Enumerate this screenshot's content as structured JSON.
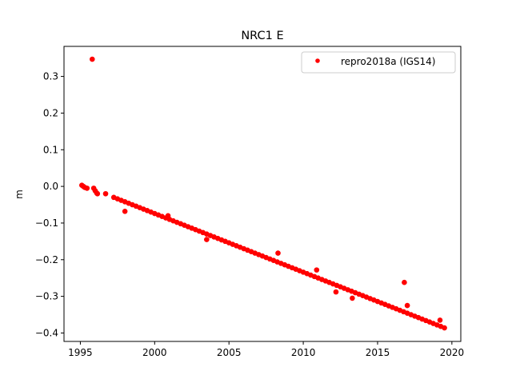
{
  "chart_data": {
    "type": "scatter",
    "title": "NRC1 E",
    "xlabel": "",
    "ylabel": "m",
    "xlim": [
      1993.9,
      2020.6
    ],
    "ylim": [
      -0.423,
      0.382
    ],
    "xticks": [
      1995,
      2000,
      2005,
      2010,
      2015,
      2020
    ],
    "xtick_labels": [
      "1995",
      "2000",
      "2005",
      "2010",
      "2015",
      "2020"
    ],
    "yticks": [
      0.3,
      0.2,
      0.1,
      0.0,
      -0.1,
      -0.2,
      -0.3,
      -0.4
    ],
    "ytick_labels": [
      "0.3",
      "0.2",
      "0.1",
      "0.0",
      "−0.1",
      "−0.2",
      "−0.3",
      "−0.4"
    ],
    "grid": false,
    "legend": {
      "placement": "top-right",
      "entries": [
        "repro2018a (IGS14)"
      ]
    },
    "series": [
      {
        "name": "repro2018a (IGS14)",
        "color": "#ff0000",
        "marker": "dot",
        "x": [
          1995.1,
          1995.2,
          1995.3,
          1995.45,
          1995.8,
          1995.9,
          1996.0,
          1996.1,
          1996.15,
          1996.7,
          1997.25,
          1997.5,
          1997.75,
          1998.0,
          1998.25,
          1998.5,
          1998.75,
          1999.0,
          1999.25,
          1999.5,
          1999.75,
          2000.0,
          2000.25,
          2000.5,
          2000.75,
          2001.0,
          2001.25,
          2001.5,
          2001.75,
          2002.0,
          2002.25,
          2002.5,
          2002.75,
          2003.0,
          2003.25,
          2003.5,
          2003.75,
          2004.0,
          2004.25,
          2004.5,
          2004.75,
          2005.0,
          2005.25,
          2005.5,
          2005.75,
          2006.0,
          2006.25,
          2006.5,
          2006.75,
          2007.0,
          2007.25,
          2007.5,
          2007.75,
          2008.0,
          2008.25,
          2008.5,
          2008.75,
          2009.0,
          2009.25,
          2009.5,
          2009.75,
          2010.0,
          2010.25,
          2010.5,
          2010.75,
          2011.0,
          2011.25,
          2011.5,
          2011.75,
          2012.0,
          2012.25,
          2012.5,
          2012.75,
          2013.0,
          2013.25,
          2013.5,
          2013.75,
          2014.0,
          2014.25,
          2014.5,
          2014.75,
          2015.0,
          2015.25,
          2015.5,
          2015.75,
          2016.0,
          2016.25,
          2016.5,
          2016.75,
          2017.0,
          2017.25,
          2017.5,
          2017.75,
          2018.0,
          2018.25,
          2018.5,
          2018.75,
          2019.0,
          2019.25,
          2019.5,
          2008.3,
          2016.8,
          1998.0,
          2000.9,
          2003.5,
          2010.9,
          2012.2,
          2013.3,
          2017.0,
          2019.2
        ],
        "y": [
          0.003,
          0.0,
          -0.003,
          -0.005,
          0.347,
          -0.005,
          -0.012,
          -0.018,
          -0.02,
          -0.02,
          -0.03,
          -0.034,
          -0.038,
          -0.042,
          -0.046,
          -0.05,
          -0.054,
          -0.058,
          -0.062,
          -0.066,
          -0.07,
          -0.074,
          -0.078,
          -0.082,
          -0.086,
          -0.09,
          -0.094,
          -0.098,
          -0.102,
          -0.106,
          -0.11,
          -0.114,
          -0.118,
          -0.122,
          -0.126,
          -0.13,
          -0.134,
          -0.138,
          -0.142,
          -0.146,
          -0.15,
          -0.154,
          -0.158,
          -0.162,
          -0.166,
          -0.17,
          -0.174,
          -0.178,
          -0.182,
          -0.186,
          -0.19,
          -0.194,
          -0.198,
          -0.202,
          -0.206,
          -0.21,
          -0.214,
          -0.218,
          -0.222,
          -0.226,
          -0.23,
          -0.234,
          -0.238,
          -0.242,
          -0.246,
          -0.25,
          -0.254,
          -0.258,
          -0.262,
          -0.266,
          -0.27,
          -0.274,
          -0.278,
          -0.282,
          -0.286,
          -0.29,
          -0.294,
          -0.298,
          -0.302,
          -0.306,
          -0.31,
          -0.314,
          -0.318,
          -0.322,
          -0.326,
          -0.33,
          -0.334,
          -0.338,
          -0.342,
          -0.346,
          -0.35,
          -0.354,
          -0.358,
          -0.362,
          -0.366,
          -0.37,
          -0.374,
          -0.378,
          -0.382,
          -0.386,
          -0.182,
          -0.262,
          -0.068,
          -0.08,
          -0.145,
          -0.228,
          -0.288,
          -0.305,
          -0.325,
          -0.365
        ]
      }
    ]
  }
}
